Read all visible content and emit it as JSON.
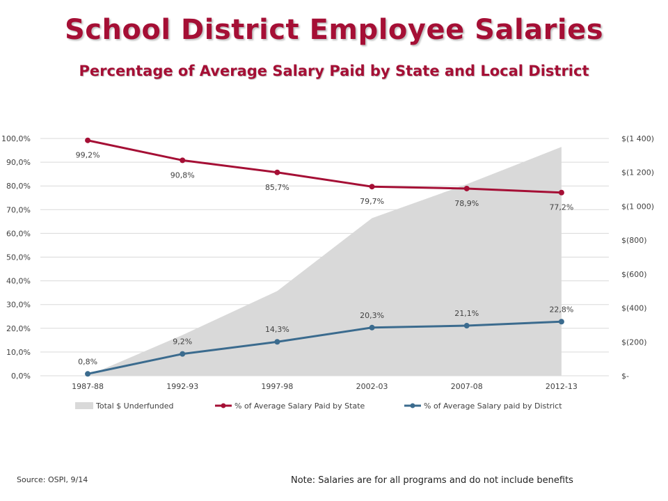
{
  "title": "School District Employee Salaries",
  "subtitle": "Percentage of Average Salary Paid by State  and Local District",
  "source": "Source: OSPI, 9/14",
  "note": "Note: Salaries are for all programs and do not include benefits",
  "colors": {
    "title": "#a50f35",
    "state": "#a50f35",
    "district": "#3b6b8e",
    "underfunded": "#d9d9d9",
    "grid": "#d9d9d9"
  },
  "chart_data": {
    "type": "line",
    "categories": [
      "1987-88",
      "1992-93",
      "1997-98",
      "2002-03",
      "2007-08",
      "2012-13"
    ],
    "y_left_ticks": [
      "0,0%",
      "10,0%",
      "20,0%",
      "30,0%",
      "40,0%",
      "50,0%",
      "60,0%",
      "70,0%",
      "80,0%",
      "90,0%",
      "100,0%"
    ],
    "y_left_lim": [
      0,
      100
    ],
    "y_right_ticks": [
      "$-",
      "$(200)",
      "$(400)",
      "$(600)",
      "$(800)",
      "$(1 000)",
      "$(1 200)",
      "$(1 400)"
    ],
    "y_right_lim": [
      0,
      1400
    ],
    "grid": true,
    "legend_position": "bottom",
    "series": [
      {
        "name": "Total $ Underfunded",
        "kind": "area",
        "axis": "right",
        "values": [
          0,
          240,
          500,
          930,
          1130,
          1350
        ]
      },
      {
        "name": "% of Average Salary Paid by State",
        "kind": "line",
        "axis": "left",
        "values": [
          99.2,
          90.8,
          85.7,
          79.7,
          78.9,
          77.2
        ],
        "labels": [
          "99,2%",
          "90,8%",
          "85,7%",
          "79,7%",
          "78,9%",
          "77,2%"
        ]
      },
      {
        "name": "% of Average Salary paid by District",
        "kind": "line",
        "axis": "left",
        "values": [
          0.8,
          9.2,
          14.3,
          20.3,
          21.1,
          22.8
        ],
        "labels": [
          "0,8%",
          "9,2%",
          "14,3%",
          "20,3%",
          "21,1%",
          "22,8%"
        ]
      }
    ]
  }
}
